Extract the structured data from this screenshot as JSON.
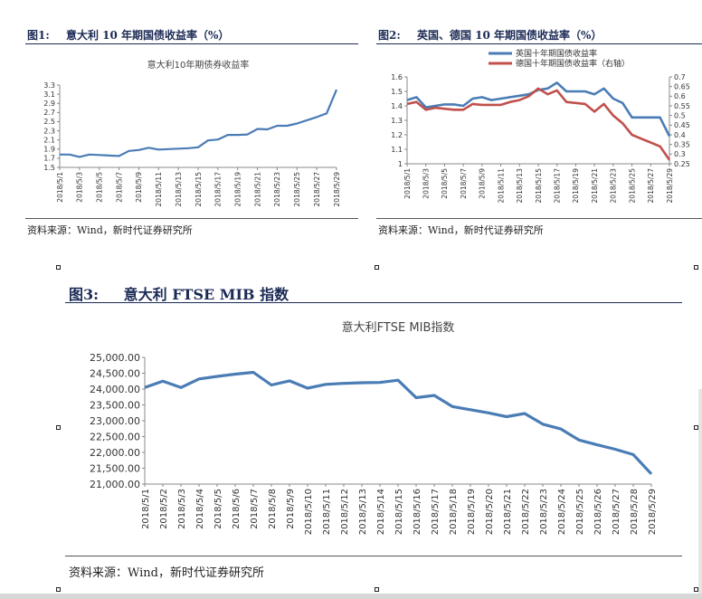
{
  "figures": {
    "fig1": {
      "label": "图1:",
      "title": "意大利 10 年期国债收益率（%）",
      "source": "资料来源：Wind，新时代证券研究所"
    },
    "fig2": {
      "label": "图2:",
      "title": "英国、德国 10 年期国债收益率（%）",
      "source": "资料来源：Wind，新时代证券研究所"
    },
    "fig3": {
      "label": "图3:",
      "title": "意大利 FTSE MIB 指数",
      "source": "资料来源：Wind，新时代证券研究所"
    }
  },
  "chart_data": [
    {
      "type": "line",
      "title": "意大利10年期债券收益率",
      "categories": [
        "2018/5/1",
        "2018/5/2",
        "2018/5/3",
        "2018/5/4",
        "2018/5/5",
        "2018/5/6",
        "2018/5/7",
        "2018/5/8",
        "2018/5/9",
        "2018/5/10",
        "2018/5/11",
        "2018/5/12",
        "2018/5/13",
        "2018/5/14",
        "2018/5/15",
        "2018/5/16",
        "2018/5/17",
        "2018/5/18",
        "2018/5/19",
        "2018/5/20",
        "2018/5/21",
        "2018/5/22",
        "2018/5/23",
        "2018/5/24",
        "2018/5/25",
        "2018/5/26",
        "2018/5/27",
        "2018/5/28",
        "2018/5/29"
      ],
      "tick_labels": [
        "2018/5/1",
        "2018/5/3",
        "2018/5/5",
        "2018/5/7",
        "2018/5/9",
        "2018/5/11",
        "2018/5/13",
        "2018/5/15",
        "2018/5/17",
        "2018/5/19",
        "2018/5/21",
        "2018/5/23",
        "2018/5/25",
        "2018/5/27",
        "2018/5/29"
      ],
      "series": [
        {
          "values": [
            1.78,
            1.78,
            1.73,
            1.78,
            1.77,
            1.76,
            1.75,
            1.86,
            1.88,
            1.93,
            1.89,
            1.9,
            1.91,
            1.92,
            1.94,
            2.09,
            2.11,
            2.21,
            2.21,
            2.22,
            2.34,
            2.33,
            2.41,
            2.41,
            2.46,
            2.53,
            2.6,
            2.68,
            3.2
          ],
          "color": "#4a7cb5"
        }
      ],
      "ylim": [
        1.5,
        3.3
      ],
      "yticks": [
        "1.5",
        "1.7",
        "1.9",
        "2.1",
        "2.3",
        "2.5",
        "2.7",
        "2.9",
        "3.1",
        "3.3"
      ],
      "grid": false
    },
    {
      "type": "line",
      "title": "",
      "categories": [
        "2018/5/1",
        "2018/5/2",
        "2018/5/3",
        "2018/5/4",
        "2018/5/5",
        "2018/5/6",
        "2018/5/7",
        "2018/5/8",
        "2018/5/9",
        "2018/5/10",
        "2018/5/11",
        "2018/5/12",
        "2018/5/13",
        "2018/5/14",
        "2018/5/15",
        "2018/5/16",
        "2018/5/17",
        "2018/5/18",
        "2018/5/19",
        "2018/5/20",
        "2018/5/21",
        "2018/5/22",
        "2018/5/23",
        "2018/5/24",
        "2018/5/25",
        "2018/5/26",
        "2018/5/27",
        "2018/5/28",
        "2018/5/29"
      ],
      "tick_labels": [
        "2018/5/1",
        "2018/5/3",
        "2018/5/5",
        "2018/5/7",
        "2018/5/9",
        "2018/5/11",
        "2018/5/13",
        "2018/5/15",
        "2018/5/17",
        "2018/5/19",
        "2018/5/21",
        "2018/5/23",
        "2018/5/25",
        "2018/5/27",
        "2018/5/29"
      ],
      "series": [
        {
          "name": "英国十年期国债收益率",
          "axis": "left",
          "color": "#4a7cb5",
          "values": [
            1.44,
            1.46,
            1.39,
            1.4,
            1.41,
            1.41,
            1.4,
            1.45,
            1.46,
            1.44,
            1.45,
            1.46,
            1.47,
            1.48,
            1.51,
            1.52,
            1.56,
            1.5,
            1.5,
            1.5,
            1.48,
            1.52,
            1.45,
            1.42,
            1.32,
            1.32,
            1.32,
            1.32,
            1.19
          ]
        },
        {
          "name": "德国十年期国债收益率（右轴）",
          "axis": "right",
          "color": "#c0504d",
          "values": [
            0.56,
            0.57,
            0.53,
            0.54,
            0.535,
            0.53,
            0.53,
            0.56,
            0.555,
            0.555,
            0.555,
            0.57,
            0.58,
            0.6,
            0.64,
            0.61,
            0.63,
            0.57,
            0.565,
            0.56,
            0.52,
            0.56,
            0.5,
            0.46,
            0.4,
            0.38,
            0.36,
            0.34,
            0.27
          ]
        }
      ],
      "ylim": [
        1,
        1.6
      ],
      "yticks": [
        "1",
        "1.1",
        "1.2",
        "1.3",
        "1.4",
        "1.5",
        "1.6"
      ],
      "y2lim": [
        0.25,
        0.7
      ],
      "y2ticks": [
        "0.25",
        "0.3",
        "0.35",
        "0.4",
        "0.45",
        "0.5",
        "0.55",
        "0.6",
        "0.65",
        "0.7"
      ],
      "legend": "top-right",
      "grid": false
    },
    {
      "type": "line",
      "title": "意大利FTSE MIB指数",
      "categories": [
        "2018/5/1",
        "2018/5/2",
        "2018/5/3",
        "2018/5/4",
        "2018/5/5",
        "2018/5/6",
        "2018/5/7",
        "2018/5/8",
        "2018/5/9",
        "2018/5/10",
        "2018/5/11",
        "2018/5/12",
        "2018/5/13",
        "2018/5/14",
        "2018/5/15",
        "2018/5/16",
        "2018/5/17",
        "2018/5/18",
        "2018/5/19",
        "2018/5/20",
        "2018/5/21",
        "2018/5/22",
        "2018/5/23",
        "2018/5/24",
        "2018/5/25",
        "2018/5/26",
        "2018/5/27",
        "2018/5/28",
        "2018/5/29"
      ],
      "tick_labels": [
        "2018/5/1",
        "2018/5/2",
        "2018/5/3",
        "2018/5/4",
        "2018/5/5",
        "2018/5/6",
        "2018/5/7",
        "2018/5/8",
        "2018/5/9",
        "2018/5/10",
        "2018/5/11",
        "2018/5/12",
        "2018/5/13",
        "2018/5/14",
        "2018/5/15",
        "2018/5/16",
        "2018/5/17",
        "2018/5/18",
        "2018/5/19",
        "2018/5/20",
        "2018/5/21",
        "2018/5/22",
        "2018/5/23",
        "2018/5/24",
        "2018/5/25",
        "2018/5/26",
        "2018/5/27",
        "2018/5/28",
        "2018/5/29"
      ],
      "series": [
        {
          "values": [
            24050,
            24250,
            24050,
            24320,
            24400,
            24470,
            24530,
            24130,
            24260,
            24030,
            24150,
            24180,
            24200,
            24210,
            24280,
            23730,
            23800,
            23450,
            23350,
            23250,
            23130,
            23230,
            22890,
            22740,
            22390,
            22240,
            22100,
            21930,
            21320
          ],
          "color": "#4a7cb5"
        }
      ],
      "ylim": [
        21000,
        25000
      ],
      "yticks": [
        "21,000.00",
        "21,500.00",
        "22,000.00",
        "22,500.00",
        "23,000.00",
        "23,500.00",
        "24,000.00",
        "24,500.00",
        "25,000.00"
      ],
      "grid": false
    }
  ]
}
